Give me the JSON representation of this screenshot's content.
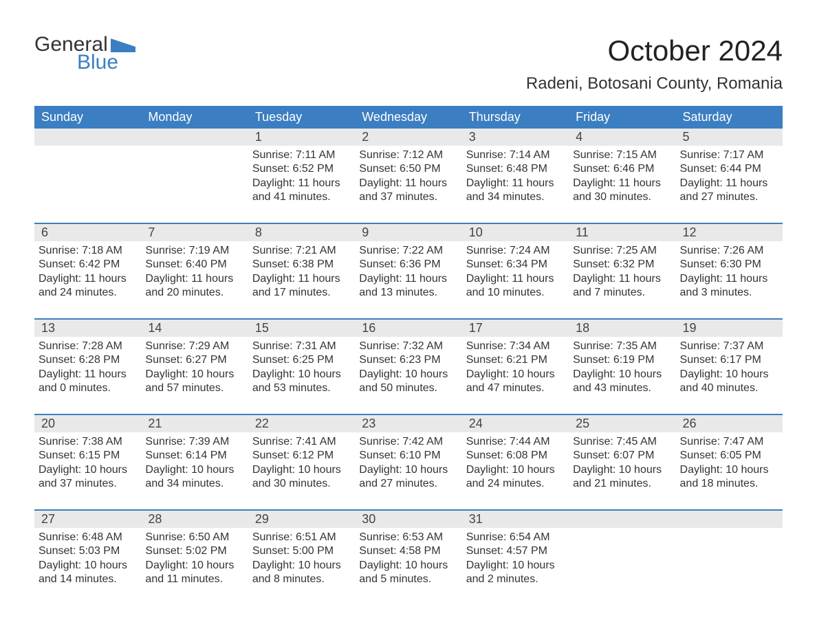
{
  "logo": {
    "text1": "General",
    "text2": "Blue",
    "flag_color": "#3b7ec1"
  },
  "title": "October 2024",
  "location": "Radeni, Botosani County, Romania",
  "colors": {
    "header_bg": "#3b7ec1",
    "header_text": "#ffffff",
    "daynum_bg": "#e9e9e9",
    "sep": "#3b7ec1",
    "text": "#333333",
    "bg": "#ffffff"
  },
  "typography": {
    "title_fontsize": 42,
    "location_fontsize": 24,
    "dow_fontsize": 18,
    "daynum_fontsize": 18,
    "body_fontsize": 16
  },
  "days_of_week": [
    "Sunday",
    "Monday",
    "Tuesday",
    "Wednesday",
    "Thursday",
    "Friday",
    "Saturday"
  ],
  "weeks": [
    {
      "nums": [
        "",
        "",
        "1",
        "2",
        "3",
        "4",
        "5"
      ],
      "cells": [
        {
          "sunrise": "",
          "sunset": "",
          "daylight": ""
        },
        {
          "sunrise": "",
          "sunset": "",
          "daylight": ""
        },
        {
          "sunrise": "Sunrise: 7:11 AM",
          "sunset": "Sunset: 6:52 PM",
          "daylight": "Daylight: 11 hours and 41 minutes."
        },
        {
          "sunrise": "Sunrise: 7:12 AM",
          "sunset": "Sunset: 6:50 PM",
          "daylight": "Daylight: 11 hours and 37 minutes."
        },
        {
          "sunrise": "Sunrise: 7:14 AM",
          "sunset": "Sunset: 6:48 PM",
          "daylight": "Daylight: 11 hours and 34 minutes."
        },
        {
          "sunrise": "Sunrise: 7:15 AM",
          "sunset": "Sunset: 6:46 PM",
          "daylight": "Daylight: 11 hours and 30 minutes."
        },
        {
          "sunrise": "Sunrise: 7:17 AM",
          "sunset": "Sunset: 6:44 PM",
          "daylight": "Daylight: 11 hours and 27 minutes."
        }
      ]
    },
    {
      "nums": [
        "6",
        "7",
        "8",
        "9",
        "10",
        "11",
        "12"
      ],
      "cells": [
        {
          "sunrise": "Sunrise: 7:18 AM",
          "sunset": "Sunset: 6:42 PM",
          "daylight": "Daylight: 11 hours and 24 minutes."
        },
        {
          "sunrise": "Sunrise: 7:19 AM",
          "sunset": "Sunset: 6:40 PM",
          "daylight": "Daylight: 11 hours and 20 minutes."
        },
        {
          "sunrise": "Sunrise: 7:21 AM",
          "sunset": "Sunset: 6:38 PM",
          "daylight": "Daylight: 11 hours and 17 minutes."
        },
        {
          "sunrise": "Sunrise: 7:22 AM",
          "sunset": "Sunset: 6:36 PM",
          "daylight": "Daylight: 11 hours and 13 minutes."
        },
        {
          "sunrise": "Sunrise: 7:24 AM",
          "sunset": "Sunset: 6:34 PM",
          "daylight": "Daylight: 11 hours and 10 minutes."
        },
        {
          "sunrise": "Sunrise: 7:25 AM",
          "sunset": "Sunset: 6:32 PM",
          "daylight": "Daylight: 11 hours and 7 minutes."
        },
        {
          "sunrise": "Sunrise: 7:26 AM",
          "sunset": "Sunset: 6:30 PM",
          "daylight": "Daylight: 11 hours and 3 minutes."
        }
      ]
    },
    {
      "nums": [
        "13",
        "14",
        "15",
        "16",
        "17",
        "18",
        "19"
      ],
      "cells": [
        {
          "sunrise": "Sunrise: 7:28 AM",
          "sunset": "Sunset: 6:28 PM",
          "daylight": "Daylight: 11 hours and 0 minutes."
        },
        {
          "sunrise": "Sunrise: 7:29 AM",
          "sunset": "Sunset: 6:27 PM",
          "daylight": "Daylight: 10 hours and 57 minutes."
        },
        {
          "sunrise": "Sunrise: 7:31 AM",
          "sunset": "Sunset: 6:25 PM",
          "daylight": "Daylight: 10 hours and 53 minutes."
        },
        {
          "sunrise": "Sunrise: 7:32 AM",
          "sunset": "Sunset: 6:23 PM",
          "daylight": "Daylight: 10 hours and 50 minutes."
        },
        {
          "sunrise": "Sunrise: 7:34 AM",
          "sunset": "Sunset: 6:21 PM",
          "daylight": "Daylight: 10 hours and 47 minutes."
        },
        {
          "sunrise": "Sunrise: 7:35 AM",
          "sunset": "Sunset: 6:19 PM",
          "daylight": "Daylight: 10 hours and 43 minutes."
        },
        {
          "sunrise": "Sunrise: 7:37 AM",
          "sunset": "Sunset: 6:17 PM",
          "daylight": "Daylight: 10 hours and 40 minutes."
        }
      ]
    },
    {
      "nums": [
        "20",
        "21",
        "22",
        "23",
        "24",
        "25",
        "26"
      ],
      "cells": [
        {
          "sunrise": "Sunrise: 7:38 AM",
          "sunset": "Sunset: 6:15 PM",
          "daylight": "Daylight: 10 hours and 37 minutes."
        },
        {
          "sunrise": "Sunrise: 7:39 AM",
          "sunset": "Sunset: 6:14 PM",
          "daylight": "Daylight: 10 hours and 34 minutes."
        },
        {
          "sunrise": "Sunrise: 7:41 AM",
          "sunset": "Sunset: 6:12 PM",
          "daylight": "Daylight: 10 hours and 30 minutes."
        },
        {
          "sunrise": "Sunrise: 7:42 AM",
          "sunset": "Sunset: 6:10 PM",
          "daylight": "Daylight: 10 hours and 27 minutes."
        },
        {
          "sunrise": "Sunrise: 7:44 AM",
          "sunset": "Sunset: 6:08 PM",
          "daylight": "Daylight: 10 hours and 24 minutes."
        },
        {
          "sunrise": "Sunrise: 7:45 AM",
          "sunset": "Sunset: 6:07 PM",
          "daylight": "Daylight: 10 hours and 21 minutes."
        },
        {
          "sunrise": "Sunrise: 7:47 AM",
          "sunset": "Sunset: 6:05 PM",
          "daylight": "Daylight: 10 hours and 18 minutes."
        }
      ]
    },
    {
      "nums": [
        "27",
        "28",
        "29",
        "30",
        "31",
        "",
        ""
      ],
      "cells": [
        {
          "sunrise": "Sunrise: 6:48 AM",
          "sunset": "Sunset: 5:03 PM",
          "daylight": "Daylight: 10 hours and 14 minutes."
        },
        {
          "sunrise": "Sunrise: 6:50 AM",
          "sunset": "Sunset: 5:02 PM",
          "daylight": "Daylight: 10 hours and 11 minutes."
        },
        {
          "sunrise": "Sunrise: 6:51 AM",
          "sunset": "Sunset: 5:00 PM",
          "daylight": "Daylight: 10 hours and 8 minutes."
        },
        {
          "sunrise": "Sunrise: 6:53 AM",
          "sunset": "Sunset: 4:58 PM",
          "daylight": "Daylight: 10 hours and 5 minutes."
        },
        {
          "sunrise": "Sunrise: 6:54 AM",
          "sunset": "Sunset: 4:57 PM",
          "daylight": "Daylight: 10 hours and 2 minutes."
        },
        {
          "sunrise": "",
          "sunset": "",
          "daylight": ""
        },
        {
          "sunrise": "",
          "sunset": "",
          "daylight": ""
        }
      ]
    }
  ]
}
